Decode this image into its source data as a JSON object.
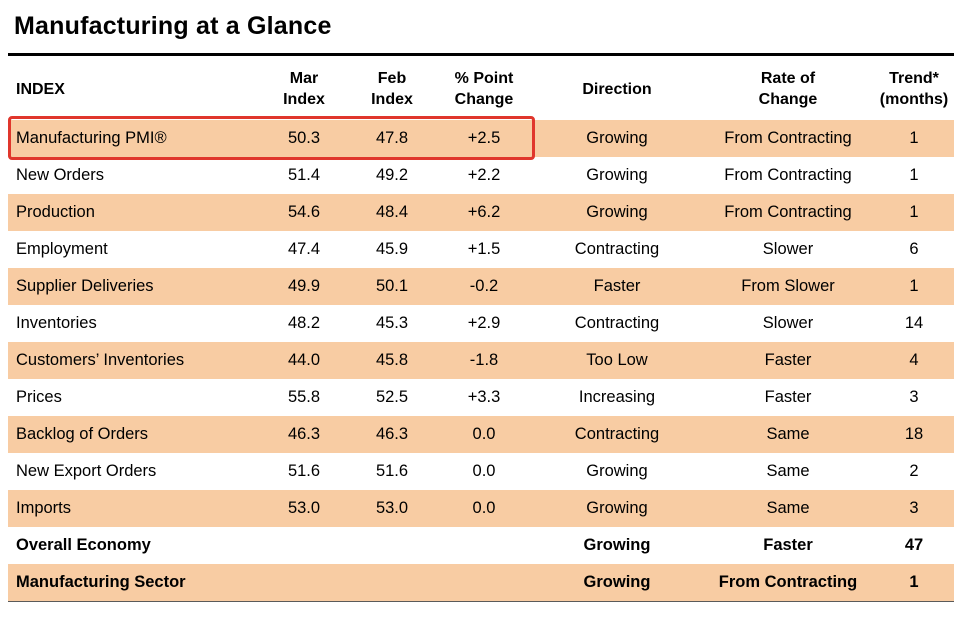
{
  "page": {
    "title": "Manufacturing at a Glance"
  },
  "colors": {
    "row_shade": "#f8cca3",
    "highlight_red": "#e0362c",
    "rule_black": "#000000"
  },
  "table": {
    "headers": [
      "INDEX",
      "Mar\nIndex",
      "Feb\nIndex",
      "% Point\nChange",
      "Direction",
      "Rate of\nChange",
      "Trend*\n(months)"
    ]
  },
  "chart_data": {
    "type": "table",
    "title": "Manufacturing at a Glance",
    "columns": [
      "INDEX",
      "Mar Index",
      "Feb Index",
      "% Point Change",
      "Direction",
      "Rate of Change",
      "Trend* (months)"
    ],
    "rows": [
      [
        "Manufacturing PMI®",
        "50.3",
        "47.8",
        "+2.5",
        "Growing",
        "From Contracting",
        "1"
      ],
      [
        "New Orders",
        "51.4",
        "49.2",
        "+2.2",
        "Growing",
        "From Contracting",
        "1"
      ],
      [
        "Production",
        "54.6",
        "48.4",
        "+6.2",
        "Growing",
        "From Contracting",
        "1"
      ],
      [
        "Employment",
        "47.4",
        "45.9",
        "+1.5",
        "Contracting",
        "Slower",
        "6"
      ],
      [
        "Supplier Deliveries",
        "49.9",
        "50.1",
        "-0.2",
        "Faster",
        "From Slower",
        "1"
      ],
      [
        "Inventories",
        "48.2",
        "45.3",
        "+2.9",
        "Contracting",
        "Slower",
        "14"
      ],
      [
        "Customers’ Inventories",
        "44.0",
        "45.8",
        "-1.8",
        "Too Low",
        "Faster",
        "4"
      ],
      [
        "Prices",
        "55.8",
        "52.5",
        "+3.3",
        "Increasing",
        "Faster",
        "3"
      ],
      [
        "Backlog of Orders",
        "46.3",
        "46.3",
        "0.0",
        "Contracting",
        "Same",
        "18"
      ],
      [
        "New Export Orders",
        "51.6",
        "51.6",
        "0.0",
        "Growing",
        "Same",
        "2"
      ],
      [
        "Imports",
        "53.0",
        "53.0",
        "0.0",
        "Growing",
        "Same",
        "3"
      ],
      [
        "Overall Economy",
        "",
        "",
        "",
        "Growing",
        "Faster",
        "47"
      ],
      [
        "Manufacturing Sector",
        "",
        "",
        "",
        "Growing",
        "From Contracting",
        "1"
      ]
    ],
    "highlighted_row": "Manufacturing PMI®",
    "bold_rows": [
      "Overall Economy",
      "Manufacturing Sector"
    ]
  }
}
